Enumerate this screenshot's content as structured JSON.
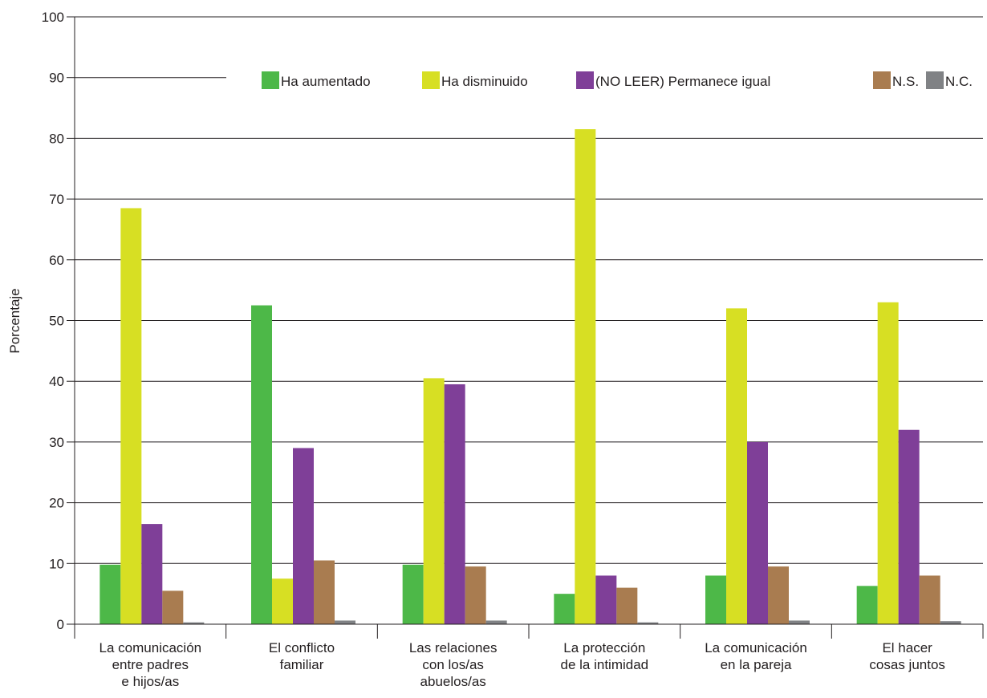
{
  "chart_data": {
    "type": "bar",
    "ylabel": "Porcentaje",
    "ylim": [
      0,
      100
    ],
    "yticks": [
      0,
      10,
      20,
      30,
      40,
      50,
      60,
      70,
      80,
      90,
      100
    ],
    "grid": true,
    "legend_position": "top-right",
    "categories": [
      [
        "La comunicación",
        "entre padres",
        "e hijos/as"
      ],
      [
        "El conflicto",
        "familiar"
      ],
      [
        "Las relaciones",
        "con los/as",
        "abuelos/as"
      ],
      [
        "La protección",
        "de la intimidad"
      ],
      [
        "La comunicación",
        "en la pareja"
      ],
      [
        "El hacer",
        "cosas juntos"
      ]
    ],
    "series": [
      {
        "name": "Ha aumentado",
        "color": "#4db848",
        "values": [
          9.8,
          52.5,
          9.8,
          5.0,
          8.0,
          6.3
        ]
      },
      {
        "name": "Ha disminuido",
        "color": "#d7df23",
        "values": [
          68.5,
          7.5,
          40.5,
          81.5,
          52.0,
          53.0
        ]
      },
      {
        "name": "(NO LEER) Permanece igual",
        "color": "#7f3f98",
        "values": [
          16.5,
          29.0,
          39.5,
          8.0,
          30.0,
          32.0
        ]
      },
      {
        "name": "N.S.",
        "color": "#a97c50",
        "values": [
          5.5,
          10.5,
          9.5,
          6.0,
          9.5,
          8.0
        ]
      },
      {
        "name": "N.C.",
        "color": "#808285",
        "values": [
          0.3,
          0.6,
          0.6,
          0.3,
          0.6,
          0.5
        ]
      }
    ]
  }
}
